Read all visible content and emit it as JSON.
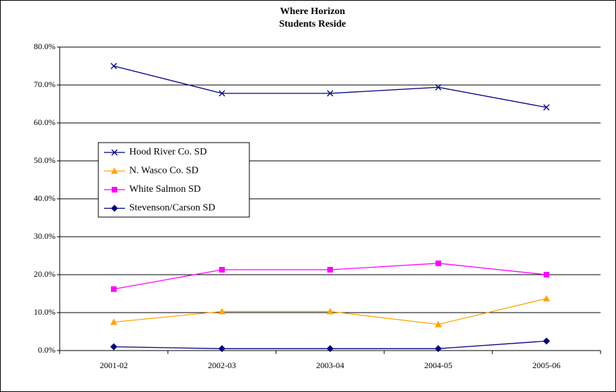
{
  "chart_data": {
    "type": "line",
    "title": [
      "Where Horizon",
      "Students Reside"
    ],
    "categories": [
      "2001-02",
      "2002-03",
      "2003-04",
      "2004-05",
      "2005-06"
    ],
    "series": [
      {
        "name": "Hood River Co. SD",
        "color": "#000080",
        "marker": "x",
        "values": [
          75.0,
          67.8,
          67.8,
          69.4,
          64.1
        ]
      },
      {
        "name": "N. Wasco Co. SD",
        "color": "#FFA500",
        "marker": "triangle",
        "values": [
          7.5,
          10.3,
          10.3,
          6.9,
          13.7
        ]
      },
      {
        "name": "White Salmon SD",
        "color": "#FF00FF",
        "marker": "square",
        "values": [
          16.2,
          21.3,
          21.3,
          23.0,
          20.0
        ]
      },
      {
        "name": "Stevenson/Carson SD",
        "color": "#000080",
        "marker": "diamond",
        "values": [
          1.0,
          0.5,
          0.5,
          0.5,
          2.5
        ]
      }
    ],
    "ylim": [
      0,
      80
    ],
    "yticks": [
      {
        "value": 0,
        "label": "0.0%"
      },
      {
        "value": 10,
        "label": "10.0%"
      },
      {
        "value": 20,
        "label": "20.0%"
      },
      {
        "value": 30,
        "label": "30.0%"
      },
      {
        "value": 40,
        "label": "40.0%"
      },
      {
        "value": 50,
        "label": "50.0%"
      },
      {
        "value": 60,
        "label": "60.0%"
      },
      {
        "value": 70,
        "label": "70.0%"
      },
      {
        "value": 80,
        "label": "80.0%"
      }
    ],
    "grid": true,
    "legend": "left"
  }
}
